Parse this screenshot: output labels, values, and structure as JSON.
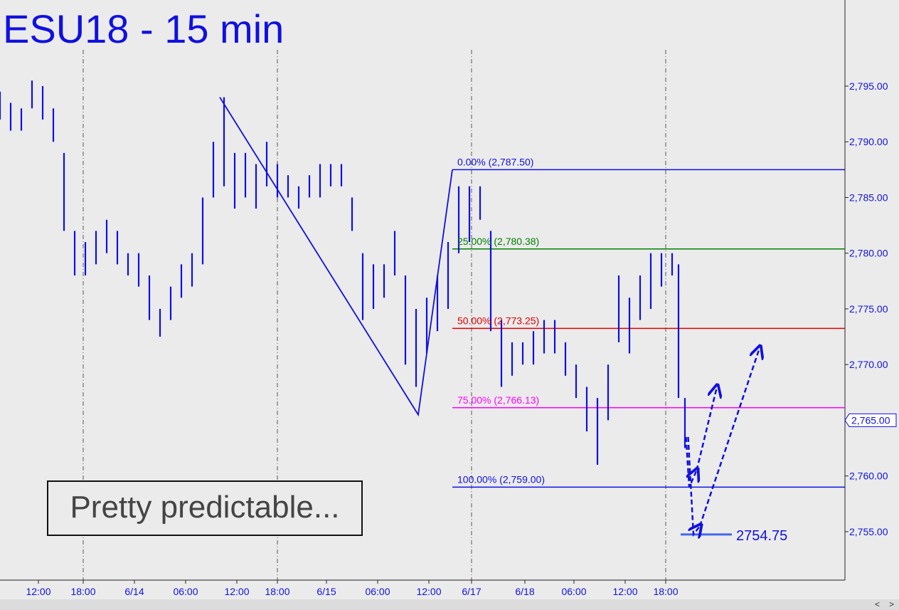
{
  "chart_data": {
    "type": "range_bar",
    "title": "ESU18 - 15 min",
    "annotation": "Pretty predictable...",
    "color": "#1010e0",
    "xlim": [
      0,
      396
    ],
    "ylim": [
      2750.65,
      2802.73
    ],
    "xticks": [
      {
        "value": 18,
        "label": "12:00"
      },
      {
        "value": 39,
        "label": "18:00"
      },
      {
        "value": 63,
        "label": "6/14"
      },
      {
        "value": 87,
        "label": "06:00"
      },
      {
        "value": 111,
        "label": "12:00"
      },
      {
        "value": 130,
        "label": "18:00"
      },
      {
        "value": 153,
        "label": "6/15"
      },
      {
        "value": 177,
        "label": "06:00"
      },
      {
        "value": 201,
        "label": "12:00"
      },
      {
        "value": 221,
        "label": "6/17"
      },
      {
        "value": 246,
        "label": "6/18"
      },
      {
        "value": 269,
        "label": "06:00"
      },
      {
        "value": 293,
        "label": "12:00"
      },
      {
        "value": 312,
        "label": "18:00"
      }
    ],
    "yticks": [
      {
        "value": 2755,
        "label": "2,755.00"
      },
      {
        "value": 2760,
        "label": "2,760.00"
      },
      {
        "value": 2765,
        "label": "2,765.00"
      },
      {
        "value": 2770,
        "label": "2,770.00"
      },
      {
        "value": 2775,
        "label": "2,775.00"
      },
      {
        "value": 2780,
        "label": "2,780.00"
      },
      {
        "value": 2785,
        "label": "2,785.00"
      },
      {
        "value": 2790,
        "label": "2,790.00"
      },
      {
        "value": 2795,
        "label": "2,795.00"
      }
    ],
    "session_breaks": [
      39,
      130,
      221,
      312
    ],
    "x": [
      0,
      5,
      10,
      15,
      20,
      25,
      30,
      35,
      40,
      45,
      50,
      55,
      60,
      65,
      70,
      75,
      80,
      85,
      90,
      95,
      100,
      105,
      110,
      115,
      120,
      125,
      130,
      135,
      140,
      145,
      150,
      155,
      160,
      165,
      170,
      175,
      180,
      185,
      190,
      195,
      200,
      205,
      210,
      215,
      220,
      225,
      230,
      235,
      240,
      245,
      250,
      255,
      260,
      265,
      270,
      275,
      280,
      285,
      290,
      295,
      300,
      305,
      310,
      315,
      318,
      321
    ],
    "high": [
      2794.5,
      2793.5,
      2793,
      2795.5,
      2795,
      2793,
      2789,
      2782,
      2781,
      2782,
      2783,
      2782,
      2780,
      2780,
      2778,
      2775,
      2777,
      2779,
      2780,
      2785,
      2790,
      2794,
      2789,
      2789,
      2788,
      2790,
      2788,
      2787,
      2786,
      2787,
      2788,
      2788,
      2788,
      2785,
      2780,
      2779,
      2779,
      2782,
      2778,
      2775,
      2776,
      2778,
      2781,
      2786,
      2786,
      2786,
      2782,
      2774,
      2772,
      2772,
      2773,
      2774,
      2774,
      2772,
      2770,
      2768,
      2767,
      2770,
      2778,
      2776,
      2778,
      2780,
      2780,
      2780,
      2779,
      2767
    ],
    "low": [
      2792,
      2791,
      2791,
      2793,
      2792,
      2790,
      2782,
      2778,
      2778,
      2779,
      2780,
      2779,
      2778,
      2777,
      2774,
      2772.5,
      2774,
      2776,
      2777,
      2779,
      2785,
      2786,
      2784,
      2785,
      2784,
      2786,
      2785,
      2785,
      2784,
      2785,
      2785,
      2786,
      2786,
      2782,
      2774,
      2775,
      2776,
      2778,
      2770,
      2768,
      2771,
      2773,
      2775,
      2780,
      2781,
      2783,
      2773,
      2768,
      2769,
      2770,
      2770,
      2771,
      2771,
      2769,
      2767,
      2764,
      2761,
      2765,
      2772,
      2771,
      2774,
      2775,
      2777,
      2778,
      2767,
      2762.5
    ],
    "pattern": {
      "x": [
        103,
        196,
        212
      ],
      "y": [
        2794,
        2765.5,
        2787.5
      ]
    },
    "fib_start": 212,
    "fib_levels": [
      {
        "value": 2787.5,
        "label": "0.00% (2,787.50)",
        "color": "#1010e0"
      },
      {
        "value": 2780.38,
        "label": "25.00% (2,780.38)",
        "color": "#008000"
      },
      {
        "value": 2773.25,
        "label": "50.00% (2,773.25)",
        "color": "#e00000"
      },
      {
        "value": 2766.13,
        "label": "75.00% (2,766.13)",
        "color": "#ff00ff"
      },
      {
        "value": 2759,
        "label": "100.00% (2,759.00)",
        "color": "#1010e0"
      }
    ],
    "target": {
      "value": 2754.75,
      "label": "2754.75",
      "x": [
        319,
        343
      ]
    },
    "projections": [
      {
        "x": [
          321.5,
          323,
          326.5
        ],
        "y": [
          2763.5,
          2759,
          2760.5
        ]
      },
      {
        "x": [
          326.5,
          336
        ],
        "y": [
          2760.5,
          2768
        ]
      },
      {
        "x": [
          322.5,
          325,
          328
        ],
        "y": [
          2763.5,
          2754.75,
          2755.5
        ]
      },
      {
        "x": [
          328,
          356
        ],
        "y": [
          2755.5,
          2771.5
        ]
      }
    ],
    "last_price": {
      "value": 2765,
      "label": "2,765.00"
    }
  }
}
